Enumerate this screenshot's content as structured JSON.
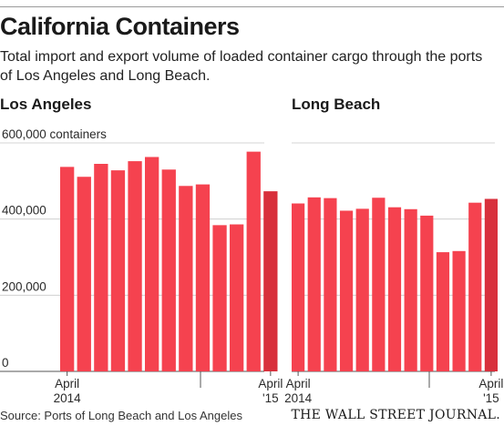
{
  "header": {
    "title": "California Containers",
    "subtitle": "Total import and export volume of loaded container cargo through the ports of Los Angeles and Long Beach."
  },
  "footer": {
    "source": "Source: Ports of Long Beach and Los Angeles",
    "publisher": "THE WALL STREET JOURNAL."
  },
  "colors": {
    "bar": "#f5424f",
    "bar_last": "#d8303c",
    "gridline": "#c9c9c9"
  },
  "chart_data": [
    {
      "type": "bar",
      "title": "Los Angeles",
      "x": [
        "2014-04",
        "2014-05",
        "2014-06",
        "2014-07",
        "2014-08",
        "2014-09",
        "2014-10",
        "2014-11",
        "2014-12",
        "2015-01",
        "2015-02",
        "2015-03",
        "2015-04"
      ],
      "values": [
        537000,
        511000,
        545000,
        528000,
        552000,
        563000,
        530000,
        487000,
        491000,
        384000,
        386000,
        577000,
        473000
      ],
      "ylim": [
        0,
        600000
      ],
      "yticks": [
        0,
        200000,
        400000,
        600000
      ],
      "ytick_labels": [
        "0",
        "200,000",
        "400,000",
        "600,000 containers"
      ],
      "xtick_labels": [
        {
          "lines": [
            "April",
            "2014"
          ],
          "index": 0
        },
        {
          "lines": [
            "April",
            "'15"
          ],
          "index": 12
        }
      ],
      "grid": true
    },
    {
      "type": "bar",
      "title": "Long Beach",
      "x": [
        "2014-04",
        "2014-05",
        "2014-06",
        "2014-07",
        "2014-08",
        "2014-09",
        "2014-10",
        "2014-11",
        "2014-12",
        "2015-01",
        "2015-02",
        "2015-03",
        "2015-04"
      ],
      "values": [
        441000,
        457000,
        455000,
        422000,
        427000,
        456000,
        431000,
        426000,
        409000,
        313000,
        316000,
        443000,
        453000
      ],
      "ylim": [
        0,
        600000
      ],
      "yticks": [
        0,
        200000,
        400000,
        600000
      ],
      "xtick_labels": [
        {
          "lines": [
            "April",
            "2014"
          ],
          "index": 0
        },
        {
          "lines": [
            "April",
            "'15"
          ],
          "index": 12
        }
      ],
      "grid": true
    }
  ]
}
